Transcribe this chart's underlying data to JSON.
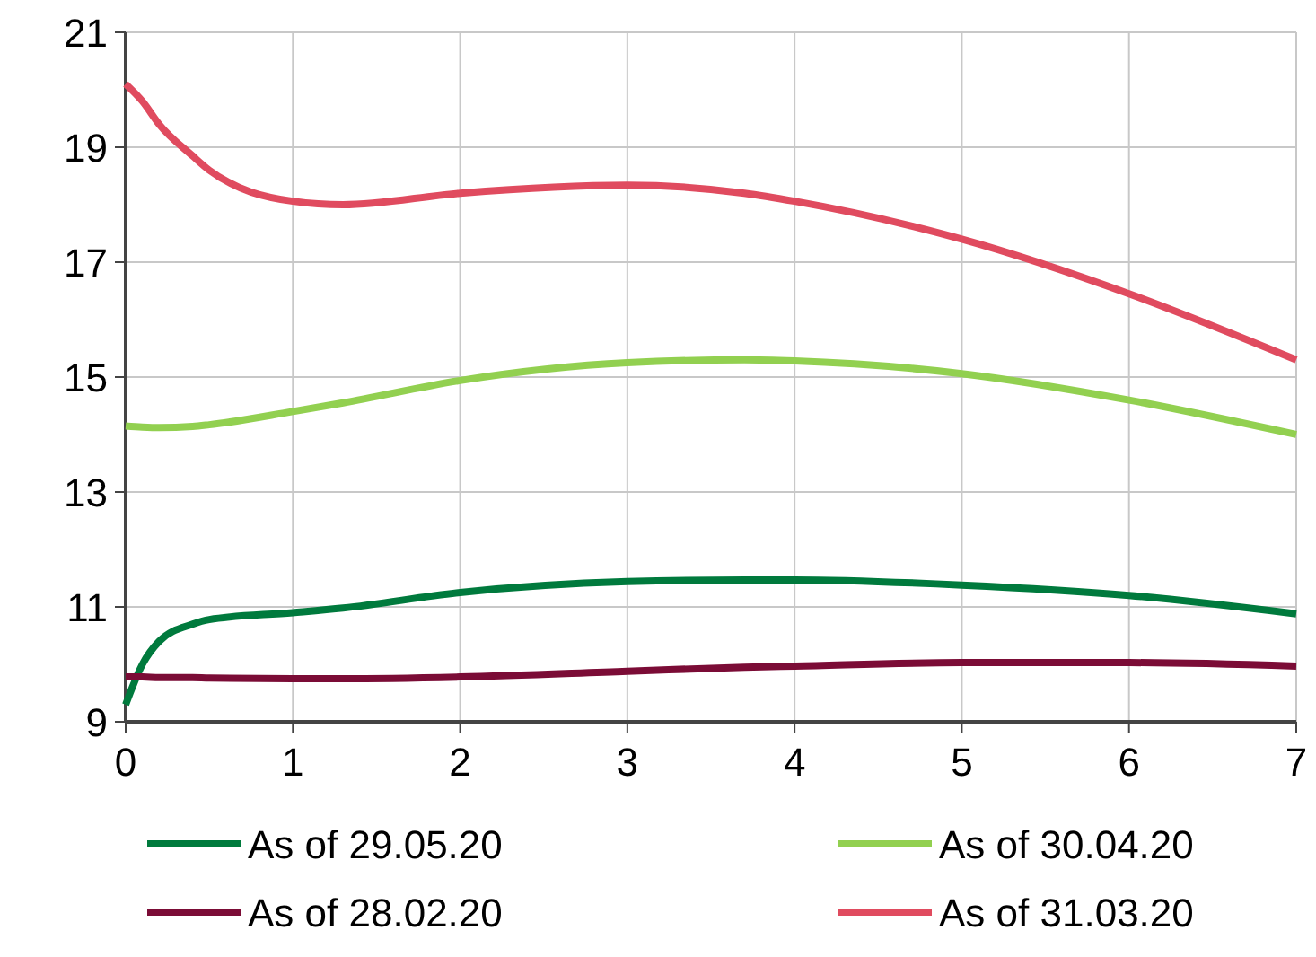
{
  "chart_data": {
    "type": "line",
    "x": [
      0,
      0.1,
      0.2,
      0.4,
      0.5,
      1,
      1.3,
      2,
      3,
      3.7,
      4,
      5,
      6,
      7
    ],
    "series": [
      {
        "name": "As of 29.05.20",
        "color": "#007a3d",
        "values": [
          9.3,
          10,
          10.4,
          10.7,
          10.78,
          10.9,
          10.98,
          11.25,
          11.44,
          11.47,
          11.47,
          11.38,
          11.2,
          10.88
        ]
      },
      {
        "name": "As of 30.04.20",
        "color": "#92d050",
        "values": [
          14.15,
          14.13,
          14.12,
          14.14,
          14.17,
          14.4,
          14.55,
          14.94,
          15.25,
          15.3,
          15.28,
          15.06,
          14.6,
          14.0
        ]
      },
      {
        "name": "As of 28.02.20",
        "color": "#7b0c36",
        "values": [
          9.78,
          9.78,
          9.77,
          9.77,
          9.76,
          9.75,
          9.75,
          9.78,
          9.88,
          9.95,
          9.97,
          10.03,
          10.03,
          9.97
        ]
      },
      {
        "name": "As of 31.03.20",
        "color": "#e04b5f",
        "values": [
          20.1,
          19.8,
          19.4,
          18.85,
          18.6,
          18.06,
          18.0,
          18.2,
          18.34,
          18.2,
          18.06,
          17.4,
          16.45,
          15.3
        ]
      }
    ],
    "xlim": [
      0,
      7
    ],
    "xticks": [
      0,
      1,
      2,
      3,
      4,
      5,
      6,
      7
    ],
    "ylim": [
      9,
      21
    ],
    "yticks": [
      9,
      11,
      13,
      15,
      17,
      19,
      21
    ],
    "grid": true,
    "legend": "bottom",
    "marker": "none",
    "line_style": "solid"
  }
}
